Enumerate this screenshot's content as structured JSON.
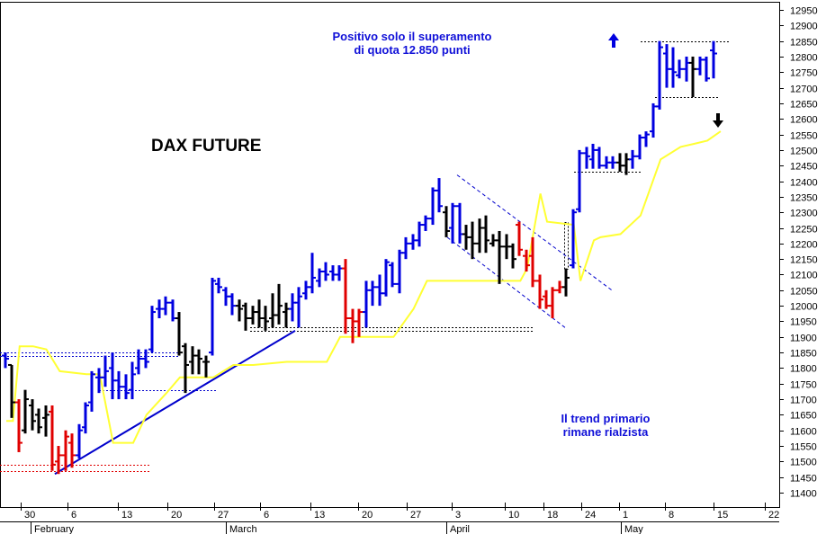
{
  "chart_data": {
    "type": "ohlc-bar",
    "title": "DAX FUTURE",
    "annotations": {
      "top_line1": "Positivo solo il superamento",
      "top_line2": "di quota 12.850 punti",
      "bottom_line1": "Il trend primario",
      "bottom_line2": "rimane rialzista"
    },
    "y_axis": {
      "position": "right",
      "min": 11400,
      "max": 12950,
      "step": 50
    },
    "x_axis": {
      "day_ticks": [
        "30",
        "6",
        "13",
        "20",
        "27",
        "6",
        "13",
        "20",
        "27",
        "3",
        "10",
        "18",
        "24",
        "1",
        "8",
        "15",
        "22"
      ],
      "months": [
        "February",
        "March",
        "April",
        "May"
      ]
    },
    "colors": {
      "up_trend": "#0000e0",
      "neutral": "#000000",
      "down": "#e00000",
      "moving_average": "#ffff33",
      "trendline": "#0000cc"
    },
    "bars": [
      {
        "o": 11840,
        "h": 11850,
        "l": 11800,
        "c": 11830,
        "color": "blue"
      },
      {
        "o": 11810,
        "h": 11810,
        "l": 11640,
        "c": 11690,
        "color": "black"
      },
      {
        "o": 11690,
        "h": 11700,
        "l": 11530,
        "c": 11560,
        "color": "red"
      },
      {
        "o": 11600,
        "h": 11730,
        "l": 11590,
        "c": 11700,
        "color": "black"
      },
      {
        "o": 11680,
        "h": 11700,
        "l": 11600,
        "c": 11630,
        "color": "black"
      },
      {
        "o": 11650,
        "h": 11670,
        "l": 11590,
        "c": 11610,
        "color": "black"
      },
      {
        "o": 11640,
        "h": 11680,
        "l": 11580,
        "c": 11650,
        "color": "black"
      },
      {
        "o": 11660,
        "h": 11680,
        "l": 11470,
        "c": 11490,
        "color": "red"
      },
      {
        "o": 11500,
        "h": 11550,
        "l": 11460,
        "c": 11520,
        "color": "red"
      },
      {
        "o": 11520,
        "h": 11600,
        "l": 11470,
        "c": 11580,
        "color": "red"
      },
      {
        "o": 11560,
        "h": 11590,
        "l": 11480,
        "c": 11520,
        "color": "red"
      },
      {
        "o": 11520,
        "h": 11620,
        "l": 11510,
        "c": 11600,
        "color": "blue"
      },
      {
        "o": 11610,
        "h": 11690,
        "l": 11590,
        "c": 11680,
        "color": "blue"
      },
      {
        "o": 11690,
        "h": 11790,
        "l": 11660,
        "c": 11780,
        "color": "blue"
      },
      {
        "o": 11770,
        "h": 11800,
        "l": 11720,
        "c": 11770,
        "color": "blue"
      },
      {
        "o": 11770,
        "h": 11840,
        "l": 11740,
        "c": 11790,
        "color": "blue"
      },
      {
        "o": 11800,
        "h": 11850,
        "l": 11700,
        "c": 11760,
        "color": "blue"
      },
      {
        "o": 11760,
        "h": 11790,
        "l": 11700,
        "c": 11740,
        "color": "blue"
      },
      {
        "o": 11740,
        "h": 11780,
        "l": 11700,
        "c": 11720,
        "color": "blue"
      },
      {
        "o": 11730,
        "h": 11820,
        "l": 11700,
        "c": 11780,
        "color": "blue"
      },
      {
        "o": 11800,
        "h": 11860,
        "l": 11780,
        "c": 11830,
        "color": "blue"
      },
      {
        "o": 11830,
        "h": 11860,
        "l": 11800,
        "c": 11820,
        "color": "blue"
      },
      {
        "o": 11860,
        "h": 12000,
        "l": 11850,
        "c": 11980,
        "color": "blue"
      },
      {
        "o": 11990,
        "h": 12020,
        "l": 11960,
        "c": 11990,
        "color": "blue"
      },
      {
        "o": 11990,
        "h": 12030,
        "l": 11970,
        "c": 12010,
        "color": "blue"
      },
      {
        "o": 12010,
        "h": 12020,
        "l": 11950,
        "c": 11960,
        "color": "blue"
      },
      {
        "o": 11960,
        "h": 11980,
        "l": 11840,
        "c": 11850,
        "color": "black"
      },
      {
        "o": 11870,
        "h": 11880,
        "l": 11720,
        "c": 11810,
        "color": "black"
      },
      {
        "o": 11820,
        "h": 11870,
        "l": 11780,
        "c": 11840,
        "color": "black"
      },
      {
        "o": 11840,
        "h": 11860,
        "l": 11780,
        "c": 11830,
        "color": "black"
      },
      {
        "o": 11820,
        "h": 11840,
        "l": 11770,
        "c": 11820,
        "color": "black"
      },
      {
        "o": 11850,
        "h": 12090,
        "l": 11840,
        "c": 12080,
        "color": "blue"
      },
      {
        "o": 12070,
        "h": 12090,
        "l": 12040,
        "c": 12060,
        "color": "blue"
      },
      {
        "o": 12050,
        "h": 12060,
        "l": 12000,
        "c": 12030,
        "color": "blue"
      },
      {
        "o": 12030,
        "h": 12040,
        "l": 11970,
        "c": 12000,
        "color": "blue"
      },
      {
        "o": 12000,
        "h": 12020,
        "l": 11950,
        "c": 11990,
        "color": "black"
      },
      {
        "o": 12000,
        "h": 12010,
        "l": 11920,
        "c": 11960,
        "color": "black"
      },
      {
        "o": 11960,
        "h": 12000,
        "l": 11940,
        "c": 11980,
        "color": "black"
      },
      {
        "o": 11980,
        "h": 12020,
        "l": 11930,
        "c": 11960,
        "color": "black"
      },
      {
        "o": 11960,
        "h": 12000,
        "l": 11920,
        "c": 11950,
        "color": "black"
      },
      {
        "o": 11960,
        "h": 12040,
        "l": 11930,
        "c": 11970,
        "color": "black"
      },
      {
        "o": 11970,
        "h": 12070,
        "l": 11940,
        "c": 12000,
        "color": "black"
      },
      {
        "o": 11980,
        "h": 12010,
        "l": 11930,
        "c": 11990,
        "color": "black"
      },
      {
        "o": 11990,
        "h": 12040,
        "l": 11950,
        "c": 12010,
        "color": "blue"
      },
      {
        "o": 12010,
        "h": 12060,
        "l": 11930,
        "c": 12030,
        "color": "blue"
      },
      {
        "o": 12040,
        "h": 12080,
        "l": 12020,
        "c": 12060,
        "color": "blue"
      },
      {
        "o": 12060,
        "h": 12170,
        "l": 12040,
        "c": 12090,
        "color": "blue"
      },
      {
        "o": 12080,
        "h": 12120,
        "l": 12060,
        "c": 12110,
        "color": "blue"
      },
      {
        "o": 12110,
        "h": 12140,
        "l": 12080,
        "c": 12100,
        "color": "blue"
      },
      {
        "o": 12110,
        "h": 12130,
        "l": 12080,
        "c": 12100,
        "color": "blue"
      },
      {
        "o": 12100,
        "h": 12130,
        "l": 12080,
        "c": 12120,
        "color": "blue"
      },
      {
        "o": 12120,
        "h": 12150,
        "l": 11910,
        "c": 11960,
        "color": "red"
      },
      {
        "o": 11960,
        "h": 11990,
        "l": 11880,
        "c": 11950,
        "color": "red"
      },
      {
        "o": 11950,
        "h": 11990,
        "l": 11900,
        "c": 11980,
        "color": "red"
      },
      {
        "o": 11980,
        "h": 12080,
        "l": 11930,
        "c": 12050,
        "color": "blue"
      },
      {
        "o": 12050,
        "h": 12080,
        "l": 12000,
        "c": 12060,
        "color": "blue"
      },
      {
        "o": 12060,
        "h": 12100,
        "l": 12000,
        "c": 12040,
        "color": "blue"
      },
      {
        "o": 12040,
        "h": 12150,
        "l": 12030,
        "c": 12140,
        "color": "blue"
      },
      {
        "o": 12130,
        "h": 12140,
        "l": 12060,
        "c": 12070,
        "color": "blue"
      },
      {
        "o": 12070,
        "h": 12180,
        "l": 12040,
        "c": 12170,
        "color": "blue"
      },
      {
        "o": 12170,
        "h": 12220,
        "l": 12150,
        "c": 12200,
        "color": "blue"
      },
      {
        "o": 12200,
        "h": 12230,
        "l": 12180,
        "c": 12210,
        "color": "blue"
      },
      {
        "o": 12210,
        "h": 12270,
        "l": 12190,
        "c": 12260,
        "color": "blue"
      },
      {
        "o": 12260,
        "h": 12290,
        "l": 12240,
        "c": 12280,
        "color": "blue"
      },
      {
        "o": 12280,
        "h": 12380,
        "l": 12260,
        "c": 12370,
        "color": "blue"
      },
      {
        "o": 12370,
        "h": 12410,
        "l": 12300,
        "c": 12320,
        "color": "blue"
      },
      {
        "o": 12300,
        "h": 12320,
        "l": 12220,
        "c": 12240,
        "color": "black"
      },
      {
        "o": 12250,
        "h": 12330,
        "l": 12200,
        "c": 12320,
        "color": "blue"
      },
      {
        "o": 12320,
        "h": 12330,
        "l": 12200,
        "c": 12230,
        "color": "blue"
      },
      {
        "o": 12230,
        "h": 12260,
        "l": 12180,
        "c": 12220,
        "color": "black"
      },
      {
        "o": 12220,
        "h": 12270,
        "l": 12150,
        "c": 12200,
        "color": "black"
      },
      {
        "o": 12200,
        "h": 12280,
        "l": 12170,
        "c": 12250,
        "color": "black"
      },
      {
        "o": 12250,
        "h": 12290,
        "l": 12170,
        "c": 12210,
        "color": "black"
      },
      {
        "o": 12200,
        "h": 12230,
        "l": 12190,
        "c": 12210,
        "color": "black"
      },
      {
        "o": 12210,
        "h": 12240,
        "l": 12070,
        "c": 12190,
        "color": "black"
      },
      {
        "o": 12190,
        "h": 12230,
        "l": 12150,
        "c": 12190,
        "color": "black"
      },
      {
        "o": 12190,
        "h": 12200,
        "l": 12120,
        "c": 12150,
        "color": "black"
      },
      {
        "o": 12260,
        "h": 12270,
        "l": 12160,
        "c": 12180,
        "color": "red"
      },
      {
        "o": 12160,
        "h": 12180,
        "l": 12110,
        "c": 12130,
        "color": "red"
      },
      {
        "o": 12160,
        "h": 12220,
        "l": 12060,
        "c": 12080,
        "color": "red"
      },
      {
        "o": 12080,
        "h": 12100,
        "l": 11990,
        "c": 12020,
        "color": "red"
      },
      {
        "o": 12030,
        "h": 12050,
        "l": 11990,
        "c": 12000,
        "color": "red"
      },
      {
        "o": 12000,
        "h": 12060,
        "l": 11960,
        "c": 12050,
        "color": "red"
      },
      {
        "o": 12050,
        "h": 12080,
        "l": 12040,
        "c": 12060,
        "color": "red"
      },
      {
        "o": 12060,
        "h": 12120,
        "l": 12030,
        "c": 12090,
        "color": "black"
      },
      {
        "o": 12130,
        "h": 12310,
        "l": 12120,
        "c": 12300,
        "color": "blue"
      },
      {
        "o": 12310,
        "h": 12500,
        "l": 12300,
        "c": 12490,
        "color": "blue"
      },
      {
        "o": 12490,
        "h": 12510,
        "l": 12440,
        "c": 12480,
        "color": "blue"
      },
      {
        "o": 12470,
        "h": 12520,
        "l": 12440,
        "c": 12500,
        "color": "blue"
      },
      {
        "o": 12500,
        "h": 12510,
        "l": 12440,
        "c": 12450,
        "color": "blue"
      },
      {
        "o": 12450,
        "h": 12480,
        "l": 12440,
        "c": 12460,
        "color": "blue"
      },
      {
        "o": 12460,
        "h": 12480,
        "l": 12440,
        "c": 12460,
        "color": "blue"
      },
      {
        "o": 12460,
        "h": 12490,
        "l": 12430,
        "c": 12450,
        "color": "black"
      },
      {
        "o": 12450,
        "h": 12490,
        "l": 12420,
        "c": 12470,
        "color": "black"
      },
      {
        "o": 12470,
        "h": 12500,
        "l": 12440,
        "c": 12480,
        "color": "blue"
      },
      {
        "o": 12480,
        "h": 12550,
        "l": 12470,
        "c": 12540,
        "color": "blue"
      },
      {
        "o": 12540,
        "h": 12560,
        "l": 12510,
        "c": 12550,
        "color": "blue"
      },
      {
        "o": 12560,
        "h": 12650,
        "l": 12540,
        "c": 12640,
        "color": "blue"
      },
      {
        "o": 12640,
        "h": 12850,
        "l": 12630,
        "c": 12830,
        "color": "blue"
      },
      {
        "o": 12810,
        "h": 12840,
        "l": 12700,
        "c": 12760,
        "color": "blue"
      },
      {
        "o": 12760,
        "h": 12830,
        "l": 12700,
        "c": 12750,
        "color": "blue"
      },
      {
        "o": 12740,
        "h": 12790,
        "l": 12730,
        "c": 12760,
        "color": "blue"
      },
      {
        "o": 12760,
        "h": 12800,
        "l": 12720,
        "c": 12780,
        "color": "blue"
      },
      {
        "o": 12780,
        "h": 12800,
        "l": 12670,
        "c": 12760,
        "color": "black"
      },
      {
        "o": 12760,
        "h": 12800,
        "l": 12740,
        "c": 12790,
        "color": "blue"
      },
      {
        "o": 12790,
        "h": 12800,
        "l": 12720,
        "c": 12730,
        "color": "blue"
      },
      {
        "o": 12820,
        "h": 12850,
        "l": 12730,
        "c": 12810,
        "color": "blue"
      }
    ],
    "moving_average": [
      {
        "b": 0,
        "v": 11630
      },
      {
        "b": 1,
        "v": 11630
      },
      {
        "b": 2,
        "v": 11870
      },
      {
        "b": 4,
        "v": 11870
      },
      {
        "b": 6,
        "v": 11860
      },
      {
        "b": 8,
        "v": 11790
      },
      {
        "b": 12,
        "v": 11780
      },
      {
        "b": 14,
        "v": 11780
      },
      {
        "b": 16,
        "v": 11560
      },
      {
        "b": 19,
        "v": 11560
      },
      {
        "b": 21,
        "v": 11650
      },
      {
        "b": 24,
        "v": 11720
      },
      {
        "b": 26,
        "v": 11770
      },
      {
        "b": 31,
        "v": 11770
      },
      {
        "b": 34,
        "v": 11810
      },
      {
        "b": 37,
        "v": 11810
      },
      {
        "b": 42,
        "v": 11820
      },
      {
        "b": 48,
        "v": 11820
      },
      {
        "b": 50,
        "v": 11900
      },
      {
        "b": 58,
        "v": 11900
      },
      {
        "b": 61,
        "v": 11990
      },
      {
        "b": 63,
        "v": 12080
      },
      {
        "b": 72,
        "v": 12080
      },
      {
        "b": 77,
        "v": 12080
      },
      {
        "b": 78,
        "v": 12120
      },
      {
        "b": 80,
        "v": 12360
      },
      {
        "b": 81,
        "v": 12270
      },
      {
        "b": 85,
        "v": 12260
      },
      {
        "b": 86,
        "v": 12080
      },
      {
        "b": 88,
        "v": 12210
      },
      {
        "b": 89,
        "v": 12220
      },
      {
        "b": 92,
        "v": 12230
      },
      {
        "b": 95,
        "v": 12290
      },
      {
        "b": 98,
        "v": 12470
      },
      {
        "b": 101,
        "v": 12510
      },
      {
        "b": 103,
        "v": 12520
      },
      {
        "b": 105,
        "v": 12530
      },
      {
        "b": 107,
        "v": 12560
      }
    ],
    "reference_lines": {
      "dotted_levels": [
        11850,
        11840,
        11730,
        11490,
        11470,
        11930,
        11920,
        12430,
        12850,
        12670
      ],
      "up_trendline": [
        {
          "b": 7,
          "v": 11460
        },
        {
          "b": 48,
          "v": 11920
        }
      ],
      "channel_upper": [
        {
          "b": 70,
          "v": 12420
        },
        {
          "b": 96,
          "v": 12050
        }
      ],
      "channel_lower": [
        {
          "b": 68,
          "v": 12220
        },
        {
          "b": 90,
          "v": 11930
        }
      ]
    }
  }
}
